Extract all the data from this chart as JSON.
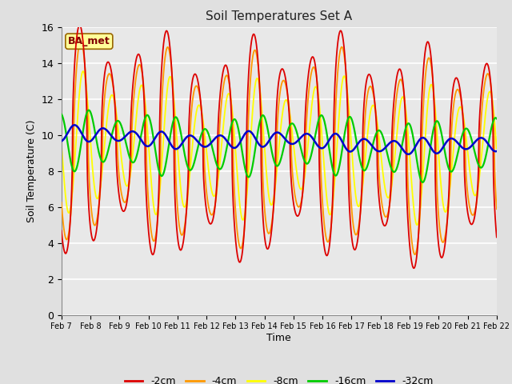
{
  "title": "Soil Temperatures Set A",
  "xlabel": "Time",
  "ylabel": "Soil Temperature (C)",
  "ylim": [
    0,
    16
  ],
  "yticks": [
    0,
    2,
    4,
    6,
    8,
    10,
    12,
    14,
    16
  ],
  "x_tick_labels": [
    "Feb 7",
    "Feb 8",
    "Feb 9",
    "Feb 10",
    "Feb 11",
    "Feb 12",
    "Feb 13",
    "Feb 14",
    "Feb 15",
    "Feb 16",
    "Feb 17",
    "Feb 18",
    "Feb 19",
    "Feb 20",
    "Feb 21",
    "Feb 22"
  ],
  "series": [
    {
      "label": "-2cm",
      "color": "#dd0000"
    },
    {
      "label": "-4cm",
      "color": "#ff9900"
    },
    {
      "label": "-8cm",
      "color": "#ffff00"
    },
    {
      "label": "-16cm",
      "color": "#00cc00"
    },
    {
      "label": "-32cm",
      "color": "#0000cc"
    }
  ],
  "bg_color": "#e8e8e8",
  "grid_color": "#ffffff",
  "annotation_text": "BA_met",
  "annotation_bg": "#ffff99",
  "annotation_border": "#996600",
  "fig_bg": "#e0e0e0"
}
